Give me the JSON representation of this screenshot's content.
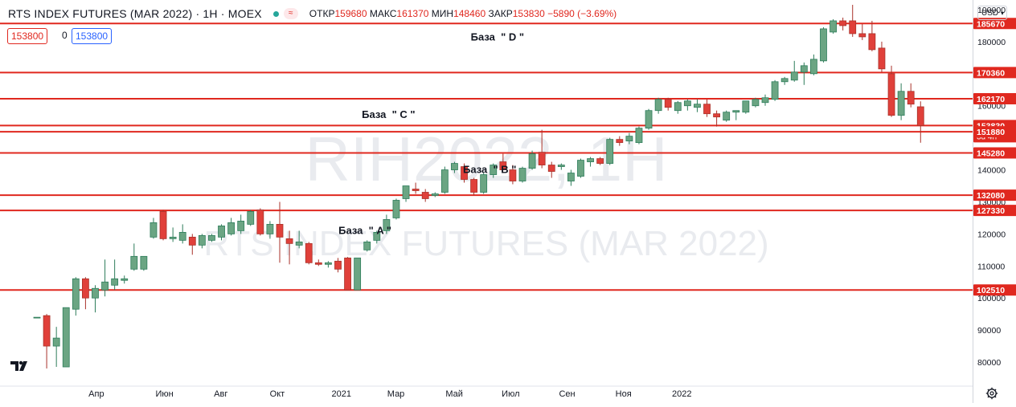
{
  "header": {
    "title": "RTS INDEX FUTURES (MAR 2022) · 1H · MOEX",
    "open_label": "ОТКР",
    "open": "159680",
    "high_label": "МАКС",
    "high": "161370",
    "low_label": "МИН",
    "low": "148460",
    "close_label": "ЗАКР",
    "close": "153830",
    "change": "−5890 (−3.69%)"
  },
  "order_boxes": {
    "sell": "153800",
    "spread": "0",
    "buy": "153800"
  },
  "currency_button": "USD",
  "watermark": {
    "line1": "RIH2022, 1H",
    "line2": "RTS INDEX FUTURES (MAR 2022)"
  },
  "annotations": [
    {
      "text": "База  \" A \"",
      "x": 15.5,
      "y": 120000
    },
    {
      "text": "База  \" B \"",
      "x": 21.9,
      "y": 139000
    },
    {
      "text": "База  \" C \"",
      "x": 16.7,
      "y": 156200
    },
    {
      "text": "База  \" D \"",
      "x": 22.3,
      "y": 180400
    }
  ],
  "colors": {
    "up": "#26a69a",
    "up_fill": "#6ba583",
    "down": "#d75442",
    "down_fill": "#e0403a",
    "level": "#e0281f",
    "watermark": "#e9ebef"
  },
  "chart_data": {
    "type": "candlestick",
    "title": "RTS INDEX FUTURES (MAR 2022) · 1H · MOEX",
    "y_axis_ticks": [
      80000,
      90000,
      100000,
      110000,
      120000,
      130000,
      140000,
      150000,
      160000,
      170000,
      180000,
      190000
    ],
    "ylim": [
      74000,
      193000
    ],
    "x_axis_labels": [
      {
        "label": "Апр",
        "x": 1.4
      },
      {
        "label": "Июн",
        "x": 4.9
      },
      {
        "label": "Авг",
        "x": 7.8
      },
      {
        "label": "Окт",
        "x": 10.7
      },
      {
        "label": "2021",
        "x": 14.0
      },
      {
        "label": "Мар",
        "x": 16.8
      },
      {
        "label": "Май",
        "x": 19.8
      },
      {
        "label": "Июл",
        "x": 22.7
      },
      {
        "label": "Сен",
        "x": 25.6
      },
      {
        "label": "Ноя",
        "x": 28.5
      },
      {
        "label": "2022",
        "x": 31.5
      }
    ],
    "levels": [
      185670,
      170360,
      162170,
      153830,
      151880,
      145280,
      132080,
      127330,
      102510
    ],
    "level_labels": [
      "185670",
      "170360",
      "162170",
      "153830",
      "151880",
      "145280",
      "132080",
      "127330",
      "102510"
    ],
    "current_countdown": "3d 4h",
    "candles": [
      {
        "o": 94000,
        "h": 94000,
        "l": 94000,
        "c": 94000
      },
      {
        "o": 94500,
        "h": 95000,
        "l": 78000,
        "c": 85000
      },
      {
        "o": 85000,
        "h": 91000,
        "l": 78500,
        "c": 87500
      },
      {
        "o": 78500,
        "h": 97000,
        "l": 78500,
        "c": 97000
      },
      {
        "o": 96500,
        "h": 106500,
        "l": 94500,
        "c": 106000
      },
      {
        "o": 106000,
        "h": 106500,
        "l": 96500,
        "c": 100000
      },
      {
        "o": 100000,
        "h": 104000,
        "l": 95500,
        "c": 103000
      },
      {
        "o": 102500,
        "h": 112000,
        "l": 100500,
        "c": 105000
      },
      {
        "o": 104000,
        "h": 112000,
        "l": 102500,
        "c": 106000
      },
      {
        "o": 105500,
        "h": 107000,
        "l": 104500,
        "c": 106000
      },
      {
        "o": 109000,
        "h": 117000,
        "l": 108500,
        "c": 113000
      },
      {
        "o": 109000,
        "h": 113000,
        "l": 108500,
        "c": 113000
      },
      {
        "o": 119000,
        "h": 125000,
        "l": 118500,
        "c": 123500
      },
      {
        "o": 127000,
        "h": 127500,
        "l": 118000,
        "c": 118500
      },
      {
        "o": 118500,
        "h": 122000,
        "l": 117500,
        "c": 119000
      },
      {
        "o": 118000,
        "h": 123000,
        "l": 117000,
        "c": 120500
      },
      {
        "o": 119000,
        "h": 120000,
        "l": 113500,
        "c": 116500
      },
      {
        "o": 116500,
        "h": 120000,
        "l": 115500,
        "c": 119500
      },
      {
        "o": 118000,
        "h": 120000,
        "l": 117500,
        "c": 119500
      },
      {
        "o": 119000,
        "h": 123000,
        "l": 118000,
        "c": 122500
      },
      {
        "o": 120000,
        "h": 125000,
        "l": 119500,
        "c": 123500
      },
      {
        "o": 121000,
        "h": 126000,
        "l": 120000,
        "c": 124000
      },
      {
        "o": 123000,
        "h": 127500,
        "l": 122500,
        "c": 127000
      },
      {
        "o": 127500,
        "h": 128000,
        "l": 119500,
        "c": 120000
      },
      {
        "o": 120000,
        "h": 124000,
        "l": 118500,
        "c": 123000
      },
      {
        "o": 123000,
        "h": 130000,
        "l": 111000,
        "c": 119000
      },
      {
        "o": 118500,
        "h": 121000,
        "l": 110500,
        "c": 117000
      },
      {
        "o": 116500,
        "h": 121000,
        "l": 115500,
        "c": 117500
      },
      {
        "o": 117000,
        "h": 117500,
        "l": 110500,
        "c": 111000
      },
      {
        "o": 111000,
        "h": 112000,
        "l": 110000,
        "c": 110500
      },
      {
        "o": 110500,
        "h": 111500,
        "l": 109500,
        "c": 111000
      },
      {
        "o": 111500,
        "h": 112500,
        "l": 108000,
        "c": 109000
      },
      {
        "o": 112500,
        "h": 112800,
        "l": 102500,
        "c": 102500
      },
      {
        "o": 102500,
        "h": 112500,
        "l": 102500,
        "c": 112500
      },
      {
        "o": 115000,
        "h": 118000,
        "l": 114500,
        "c": 117500
      },
      {
        "o": 118000,
        "h": 121000,
        "l": 117000,
        "c": 120500
      },
      {
        "o": 121000,
        "h": 126000,
        "l": 120000,
        "c": 124500
      },
      {
        "o": 125000,
        "h": 131000,
        "l": 124500,
        "c": 130500
      },
      {
        "o": 131000,
        "h": 135000,
        "l": 130000,
        "c": 135000
      },
      {
        "o": 134000,
        "h": 136000,
        "l": 132500,
        "c": 133500
      },
      {
        "o": 133000,
        "h": 134000,
        "l": 130000,
        "c": 131000
      },
      {
        "o": 132000,
        "h": 133000,
        "l": 131500,
        "c": 132500
      },
      {
        "o": 133000,
        "h": 141000,
        "l": 132500,
        "c": 140000
      },
      {
        "o": 140000,
        "h": 142500,
        "l": 139000,
        "c": 142000
      },
      {
        "o": 141000,
        "h": 142000,
        "l": 136000,
        "c": 137000
      },
      {
        "o": 137000,
        "h": 137500,
        "l": 132000,
        "c": 133000
      },
      {
        "o": 133000,
        "h": 139000,
        "l": 132500,
        "c": 138500
      },
      {
        "o": 138500,
        "h": 142000,
        "l": 137500,
        "c": 141500
      },
      {
        "o": 142500,
        "h": 145000,
        "l": 141000,
        "c": 140000
      },
      {
        "o": 140000,
        "h": 141500,
        "l": 135500,
        "c": 136500
      },
      {
        "o": 136500,
        "h": 141000,
        "l": 136000,
        "c": 140500
      },
      {
        "o": 140500,
        "h": 146000,
        "l": 140000,
        "c": 145000
      },
      {
        "o": 145500,
        "h": 152500,
        "l": 140500,
        "c": 141500
      },
      {
        "o": 141500,
        "h": 142500,
        "l": 137500,
        "c": 139500
      },
      {
        "o": 141000,
        "h": 142000,
        "l": 140000,
        "c": 141500
      },
      {
        "o": 136500,
        "h": 140000,
        "l": 135000,
        "c": 139000
      },
      {
        "o": 138000,
        "h": 143500,
        "l": 137500,
        "c": 143000
      },
      {
        "o": 142500,
        "h": 144000,
        "l": 141000,
        "c": 143500
      },
      {
        "o": 143500,
        "h": 144000,
        "l": 141500,
        "c": 142000
      },
      {
        "o": 142000,
        "h": 150000,
        "l": 141500,
        "c": 149500
      },
      {
        "o": 149500,
        "h": 150500,
        "l": 147500,
        "c": 148500
      },
      {
        "o": 149000,
        "h": 151500,
        "l": 148000,
        "c": 150500
      },
      {
        "o": 148500,
        "h": 153500,
        "l": 148000,
        "c": 153000
      },
      {
        "o": 153000,
        "h": 159000,
        "l": 152500,
        "c": 158500
      },
      {
        "o": 158500,
        "h": 162500,
        "l": 157500,
        "c": 162000
      },
      {
        "o": 162000,
        "h": 162500,
        "l": 158500,
        "c": 159500
      },
      {
        "o": 158500,
        "h": 161500,
        "l": 157500,
        "c": 161000
      },
      {
        "o": 160000,
        "h": 162000,
        "l": 158500,
        "c": 161500
      },
      {
        "o": 159500,
        "h": 162000,
        "l": 158000,
        "c": 160500
      },
      {
        "o": 160500,
        "h": 162000,
        "l": 156500,
        "c": 157500
      },
      {
        "o": 157500,
        "h": 158500,
        "l": 153500,
        "c": 156500
      },
      {
        "o": 155500,
        "h": 158500,
        "l": 155000,
        "c": 158000
      },
      {
        "o": 158000,
        "h": 158500,
        "l": 155500,
        "c": 158500
      },
      {
        "o": 158000,
        "h": 161500,
        "l": 157500,
        "c": 161500
      },
      {
        "o": 160000,
        "h": 162500,
        "l": 159500,
        "c": 162000
      },
      {
        "o": 161000,
        "h": 163500,
        "l": 160000,
        "c": 162500
      },
      {
        "o": 162000,
        "h": 168000,
        "l": 161500,
        "c": 167500
      },
      {
        "o": 167500,
        "h": 169000,
        "l": 166500,
        "c": 168500
      },
      {
        "o": 168000,
        "h": 174000,
        "l": 167500,
        "c": 170500
      },
      {
        "o": 170500,
        "h": 173500,
        "l": 166500,
        "c": 172500
      },
      {
        "o": 170000,
        "h": 176000,
        "l": 169500,
        "c": 174500
      },
      {
        "o": 174000,
        "h": 184500,
        "l": 173500,
        "c": 184000
      },
      {
        "o": 183000,
        "h": 187000,
        "l": 182500,
        "c": 186500
      },
      {
        "o": 186500,
        "h": 187500,
        "l": 183500,
        "c": 185000
      },
      {
        "o": 186500,
        "h": 191500,
        "l": 181500,
        "c": 182500
      },
      {
        "o": 182500,
        "h": 185500,
        "l": 180500,
        "c": 181500
      },
      {
        "o": 182500,
        "h": 186500,
        "l": 177000,
        "c": 177500
      },
      {
        "o": 178000,
        "h": 180000,
        "l": 170500,
        "c": 171500
      },
      {
        "o": 170000,
        "h": 172500,
        "l": 156500,
        "c": 157000
      },
      {
        "o": 157000,
        "h": 167000,
        "l": 155500,
        "c": 164500
      },
      {
        "o": 164500,
        "h": 167000,
        "l": 159500,
        "c": 160500
      },
      {
        "o": 159680,
        "h": 161370,
        "l": 148460,
        "c": 153830
      }
    ]
  }
}
